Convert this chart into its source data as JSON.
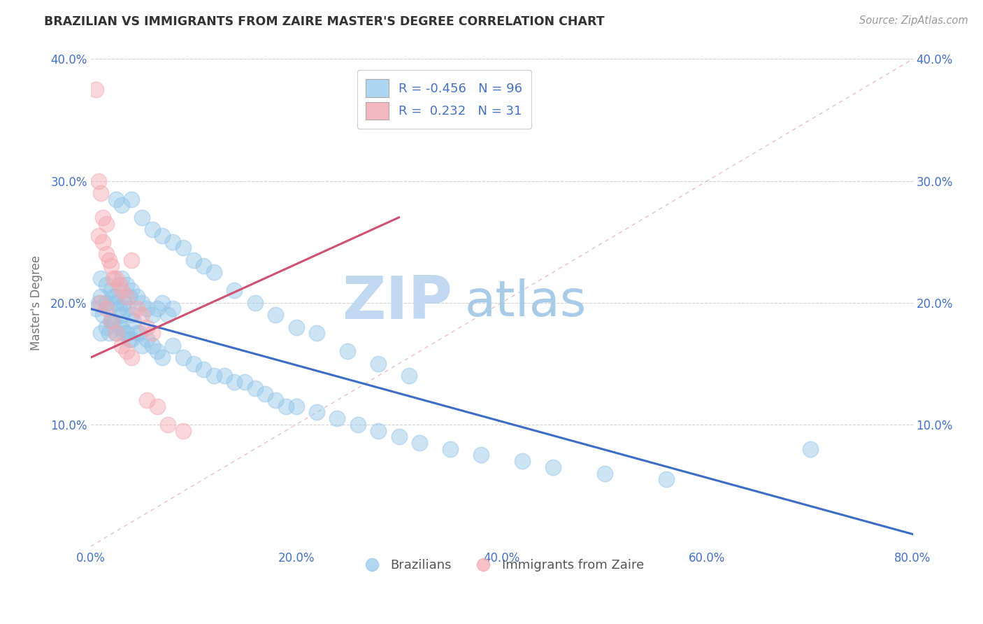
{
  "title": "BRAZILIAN VS IMMIGRANTS FROM ZAIRE MASTER'S DEGREE CORRELATION CHART",
  "source_text": "Source: ZipAtlas.com",
  "ylabel": "Master's Degree",
  "xlim": [
    0.0,
    0.8
  ],
  "ylim": [
    0.0,
    0.4
  ],
  "xtick_labels": [
    "0.0%",
    "",
    "20.0%",
    "",
    "40.0%",
    "",
    "60.0%",
    "",
    "80.0%"
  ],
  "xtick_vals": [
    0.0,
    0.1,
    0.2,
    0.3,
    0.4,
    0.5,
    0.6,
    0.7,
    0.8
  ],
  "ytick_labels": [
    "10.0%",
    "20.0%",
    "30.0%",
    "40.0%"
  ],
  "ytick_vals": [
    0.1,
    0.2,
    0.3,
    0.4
  ],
  "diagonal_color": "#E8B4B8",
  "blue_color": "#92C5E8",
  "pink_color": "#F4A7B0",
  "blue_line_color": "#3B6CC7",
  "pink_line_color": "#D05070",
  "legend_blue_patch": "#AED6F1",
  "legend_pink_patch": "#F4B8C1",
  "tick_color": "#4472C4",
  "grid_color": "#C8C8C8",
  "title_color": "#333333",
  "axis_label_color": "#777777",
  "source_color": "#999999",
  "blue_scatter_x": [
    0.005,
    0.008,
    0.01,
    0.012,
    0.015,
    0.018,
    0.02,
    0.022,
    0.025,
    0.028,
    0.03,
    0.032,
    0.035,
    0.038,
    0.04,
    0.01,
    0.015,
    0.02,
    0.025,
    0.03,
    0.035,
    0.04,
    0.045,
    0.05,
    0.055,
    0.06,
    0.065,
    0.07,
    0.075,
    0.08,
    0.01,
    0.015,
    0.02,
    0.025,
    0.03,
    0.035,
    0.04,
    0.045,
    0.05,
    0.055,
    0.06,
    0.065,
    0.07,
    0.08,
    0.09,
    0.1,
    0.11,
    0.12,
    0.13,
    0.14,
    0.15,
    0.16,
    0.17,
    0.18,
    0.19,
    0.2,
    0.22,
    0.24,
    0.26,
    0.28,
    0.3,
    0.32,
    0.35,
    0.38,
    0.42,
    0.45,
    0.5,
    0.56,
    0.025,
    0.03,
    0.04,
    0.05,
    0.06,
    0.07,
    0.08,
    0.09,
    0.1,
    0.11,
    0.12,
    0.14,
    0.16,
    0.18,
    0.2,
    0.22,
    0.25,
    0.28,
    0.31,
    0.018,
    0.022,
    0.028,
    0.032,
    0.038,
    0.042,
    0.048,
    0.7
  ],
  "blue_scatter_y": [
    0.195,
    0.2,
    0.205,
    0.19,
    0.2,
    0.195,
    0.185,
    0.205,
    0.2,
    0.195,
    0.19,
    0.2,
    0.195,
    0.205,
    0.19,
    0.22,
    0.215,
    0.21,
    0.205,
    0.22,
    0.215,
    0.21,
    0.205,
    0.2,
    0.195,
    0.19,
    0.195,
    0.2,
    0.19,
    0.195,
    0.175,
    0.18,
    0.185,
    0.175,
    0.18,
    0.175,
    0.17,
    0.175,
    0.165,
    0.17,
    0.165,
    0.16,
    0.155,
    0.165,
    0.155,
    0.15,
    0.145,
    0.14,
    0.14,
    0.135,
    0.135,
    0.13,
    0.125,
    0.12,
    0.115,
    0.115,
    0.11,
    0.105,
    0.1,
    0.095,
    0.09,
    0.085,
    0.08,
    0.075,
    0.07,
    0.065,
    0.06,
    0.055,
    0.285,
    0.28,
    0.285,
    0.27,
    0.26,
    0.255,
    0.25,
    0.245,
    0.235,
    0.23,
    0.225,
    0.21,
    0.2,
    0.19,
    0.18,
    0.175,
    0.16,
    0.15,
    0.14,
    0.175,
    0.185,
    0.18,
    0.175,
    0.17,
    0.185,
    0.175,
    0.08
  ],
  "pink_scatter_x": [
    0.005,
    0.008,
    0.01,
    0.012,
    0.015,
    0.008,
    0.012,
    0.015,
    0.018,
    0.02,
    0.022,
    0.025,
    0.028,
    0.03,
    0.035,
    0.04,
    0.045,
    0.05,
    0.055,
    0.06,
    0.01,
    0.015,
    0.02,
    0.025,
    0.03,
    0.035,
    0.04,
    0.055,
    0.065,
    0.075,
    0.09
  ],
  "pink_scatter_y": [
    0.375,
    0.3,
    0.29,
    0.27,
    0.265,
    0.255,
    0.25,
    0.24,
    0.235,
    0.23,
    0.22,
    0.22,
    0.215,
    0.21,
    0.205,
    0.235,
    0.195,
    0.19,
    0.18,
    0.175,
    0.2,
    0.195,
    0.185,
    0.175,
    0.165,
    0.16,
    0.155,
    0.12,
    0.115,
    0.1,
    0.095
  ],
  "blue_trend_x": [
    0.0,
    0.8
  ],
  "blue_trend_y": [
    0.195,
    0.01
  ],
  "pink_trend_x": [
    0.0,
    0.3
  ],
  "pink_trend_y": [
    0.155,
    0.27
  ],
  "watermark_zip": "ZIP",
  "watermark_atlas": "atlas",
  "watermark_zip_color": "#C0D8F0",
  "watermark_atlas_color": "#A8CCE8"
}
